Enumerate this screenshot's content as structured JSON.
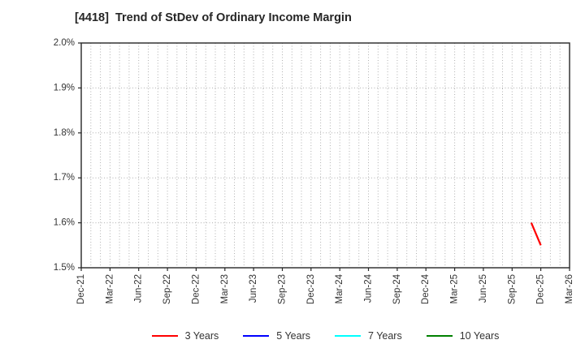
{
  "title": "[4418]  Trend of StDev of Ordinary Income Margin",
  "colors": {
    "background": "#ffffff",
    "title_text": "#262626",
    "axis_text": "#333333",
    "spine": "#262626",
    "gridline": "#b0b0b0",
    "series_3y": "#ff0000",
    "series_5y": "#0000ff",
    "series_7y": "#00ffff",
    "series_10y": "#008000"
  },
  "chart_data": {
    "type": "line",
    "title": "[4418]  Trend of StDev of Ordinary Income Margin",
    "xlabel": "",
    "ylabel": "",
    "grid": true,
    "legend_position": "bottom-center",
    "x_axis": {
      "tick_labels": [
        "Dec-21",
        "Mar-22",
        "Jun-22",
        "Sep-22",
        "Dec-22",
        "Mar-23",
        "Jun-23",
        "Sep-23",
        "Dec-23",
        "Mar-24",
        "Jun-24",
        "Sep-24",
        "Dec-24",
        "Mar-25",
        "Jun-25",
        "Sep-25",
        "Dec-25",
        "Mar-26"
      ],
      "months_per_tick": 3,
      "total_months": 51,
      "minor_gridlines": "monthly",
      "tick_label_rotation_deg": 90
    },
    "y_axis": {
      "min": 1.5,
      "max": 2.0,
      "tick_step": 0.1,
      "tick_labels": [
        "1.5%",
        "1.6%",
        "1.7%",
        "1.8%",
        "1.9%",
        "2.0%"
      ],
      "unit": "%"
    },
    "series": [
      {
        "name": "3 Years",
        "color": "#ff0000",
        "points": [
          {
            "x_label": "Nov-25",
            "month_index": 47,
            "y": 1.6
          },
          {
            "x_label": "Dec-25",
            "month_index": 48,
            "y": 1.55
          }
        ]
      },
      {
        "name": "5 Years",
        "color": "#0000ff",
        "points": []
      },
      {
        "name": "7 Years",
        "color": "#00ffff",
        "points": []
      },
      {
        "name": "10 Years",
        "color": "#008000",
        "points": []
      }
    ]
  }
}
